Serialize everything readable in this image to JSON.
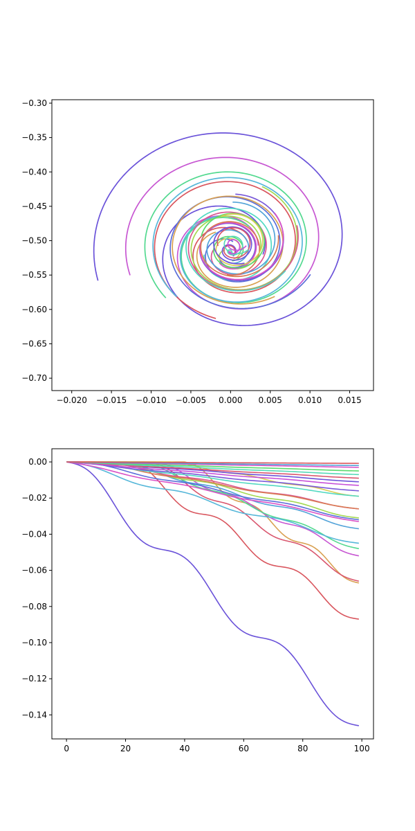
{
  "chart_data": [
    {
      "type": "line",
      "subtype": "spiral-trajectories",
      "title": "",
      "xlabel": "",
      "ylabel": "",
      "xlim": [
        -0.0225,
        0.018
      ],
      "ylim": [
        -0.718,
        -0.295
      ],
      "xticks": [
        -0.02,
        -0.015,
        -0.01,
        -0.005,
        0.0,
        0.005,
        0.01,
        0.015
      ],
      "xtick_labels": [
        "−0.020",
        "−0.015",
        "−0.010",
        "−0.005",
        "0.000",
        "0.005",
        "0.010",
        "0.015"
      ],
      "yticks": [
        -0.3,
        -0.35,
        -0.4,
        -0.45,
        -0.5,
        -0.55,
        -0.6,
        -0.65,
        -0.7
      ],
      "ytick_labels": [
        "−0.30",
        "−0.35",
        "−0.40",
        "−0.45",
        "−0.50",
        "−0.55",
        "−0.60",
        "−0.65",
        "−0.70"
      ],
      "grid": false,
      "legend": false,
      "center": [
        0.0,
        -0.52
      ],
      "series": [
        {
          "color": "#6a52d9",
          "r_start": 0.22,
          "r_end": 1.0,
          "turns": 1.55,
          "phase": 0.0
        },
        {
          "color": "#c756d2",
          "r_start": 0.2,
          "r_end": 0.78,
          "turns": 1.5,
          "phase": 0.35
        },
        {
          "color": "#d9565e",
          "r_start": 0.15,
          "r_end": 0.62,
          "turns": 1.6,
          "phase": 0.7
        },
        {
          "color": "#52d98f",
          "r_start": 0.25,
          "r_end": 0.66,
          "turns": 1.45,
          "phase": 1.05
        },
        {
          "color": "#5a6ed9",
          "r_start": 0.1,
          "r_end": 0.56,
          "turns": 1.7,
          "phase": 1.4
        },
        {
          "color": "#56b7d9",
          "r_start": 0.3,
          "r_end": 0.6,
          "turns": 1.35,
          "phase": 1.75
        },
        {
          "color": "#d9a152",
          "r_start": 0.2,
          "r_end": 0.5,
          "turns": 1.5,
          "phase": 2.1
        },
        {
          "color": "#a3d952",
          "r_start": 0.05,
          "r_end": 0.45,
          "turns": 1.8,
          "phase": 2.45
        },
        {
          "color": "#d95690",
          "r_start": 0.12,
          "r_end": 0.42,
          "turns": 1.6,
          "phase": 2.8
        },
        {
          "color": "#52d9c2",
          "r_start": 0.18,
          "r_end": 0.4,
          "turns": 1.4,
          "phase": 3.15
        },
        {
          "color": "#7a5ad9",
          "r_start": 0.08,
          "r_end": 0.36,
          "turns": 1.7,
          "phase": 3.5
        },
        {
          "color": "#d952c7",
          "r_start": 0.1,
          "r_end": 0.33,
          "turns": 1.5,
          "phase": 3.85
        },
        {
          "color": "#52a3d9",
          "r_start": 0.06,
          "r_end": 0.3,
          "turns": 1.6,
          "phase": 4.2
        },
        {
          "color": "#d97a52",
          "r_start": 0.16,
          "r_end": 0.28,
          "turns": 1.3,
          "phase": 4.55
        },
        {
          "color": "#5ad96e",
          "r_start": 0.05,
          "r_end": 0.25,
          "turns": 1.7,
          "phase": 4.9
        },
        {
          "color": "#d9cc52",
          "r_start": 0.04,
          "r_end": 0.22,
          "turns": 1.5,
          "phase": 5.25
        },
        {
          "color": "#6e52d9",
          "r_start": 0.02,
          "r_end": 0.18,
          "turns": 1.9,
          "phase": 5.6
        },
        {
          "color": "#d9566e",
          "r_start": 0.02,
          "r_end": 0.14,
          "turns": 1.6,
          "phase": 5.95
        },
        {
          "color": "#56d9b7",
          "r_start": 0.01,
          "r_end": 0.1,
          "turns": 1.8,
          "phase": 0.5
        },
        {
          "color": "#c752d9",
          "r_start": 0.01,
          "r_end": 0.07,
          "turns": 1.7,
          "phase": 1.3
        }
      ]
    },
    {
      "type": "line",
      "title": "",
      "xlabel": "",
      "ylabel": "",
      "xlim": [
        -4.95,
        103.95
      ],
      "ylim": [
        -0.1533,
        0.0073
      ],
      "xticks": [
        0,
        20,
        40,
        60,
        80,
        100
      ],
      "xtick_labels": [
        "0",
        "20",
        "40",
        "60",
        "80",
        "100"
      ],
      "yticks": [
        0.0,
        -0.02,
        -0.04,
        -0.06,
        -0.08,
        -0.1,
        -0.12,
        -0.14
      ],
      "ytick_labels": [
        "0.00",
        "−0.02",
        "−0.04",
        "−0.06",
        "−0.08",
        "−0.10",
        "−0.12",
        "−0.14"
      ],
      "grid": false,
      "legend": false,
      "x_range": [
        0,
        99
      ],
      "series": [
        {
          "color": "#6a52d9",
          "end": -0.146,
          "wave": 0.8,
          "delay": 0
        },
        {
          "color": "#d9565e",
          "end": -0.087,
          "wave": 0.8,
          "delay": 20
        },
        {
          "color": "#d9a152",
          "end": -0.067,
          "wave": 0.7,
          "delay": 40
        },
        {
          "color": "#d9566e",
          "end": -0.066,
          "wave": 0.6,
          "delay": 28
        },
        {
          "color": "#c756d2",
          "end": -0.052,
          "wave": 0.55,
          "delay": 30
        },
        {
          "color": "#52d98f",
          "end": -0.048,
          "wave": 0.5,
          "delay": 25
        },
        {
          "color": "#56b7d9",
          "end": -0.045,
          "wave": 0.55,
          "delay": 0
        },
        {
          "color": "#52a3d9",
          "end": -0.037,
          "wave": 0.5,
          "delay": 18
        },
        {
          "color": "#d952c7",
          "end": -0.033,
          "wave": 0.3,
          "delay": 0
        },
        {
          "color": "#5a6ed9",
          "end": -0.032,
          "wave": 0.4,
          "delay": 5
        },
        {
          "color": "#a3d952",
          "end": -0.031,
          "wave": 0.5,
          "delay": 15
        },
        {
          "color": "#d95690",
          "end": -0.026,
          "wave": 0.45,
          "delay": 12
        },
        {
          "color": "#d97a52",
          "end": -0.026,
          "wave": 0.35,
          "delay": 8
        },
        {
          "color": "#d9cc52",
          "end": -0.019,
          "wave": 0.5,
          "delay": 35
        },
        {
          "color": "#52d9c2",
          "end": -0.019,
          "wave": 0.3,
          "delay": 3
        },
        {
          "color": "#7a5ad9",
          "end": -0.016,
          "wave": 0.3,
          "delay": 0
        },
        {
          "color": "#c752d9",
          "end": -0.013,
          "wave": 0.25,
          "delay": 0
        },
        {
          "color": "#6e52d9",
          "end": -0.011,
          "wave": 0.25,
          "delay": 4
        },
        {
          "color": "#d9566e",
          "end": -0.009,
          "wave": 0.2,
          "delay": 0
        },
        {
          "color": "#56d9b7",
          "end": -0.007,
          "wave": 0.2,
          "delay": 0
        },
        {
          "color": "#5ad96e",
          "end": -0.005,
          "wave": 0.2,
          "delay": 0
        },
        {
          "color": "#d952c7",
          "end": -0.003,
          "wave": 0.15,
          "delay": 0
        },
        {
          "color": "#52a3d9",
          "end": -0.002,
          "wave": 0.1,
          "delay": 0
        },
        {
          "color": "#d9565e",
          "end": -0.0008,
          "wave": 0.1,
          "delay": 0
        }
      ]
    }
  ]
}
